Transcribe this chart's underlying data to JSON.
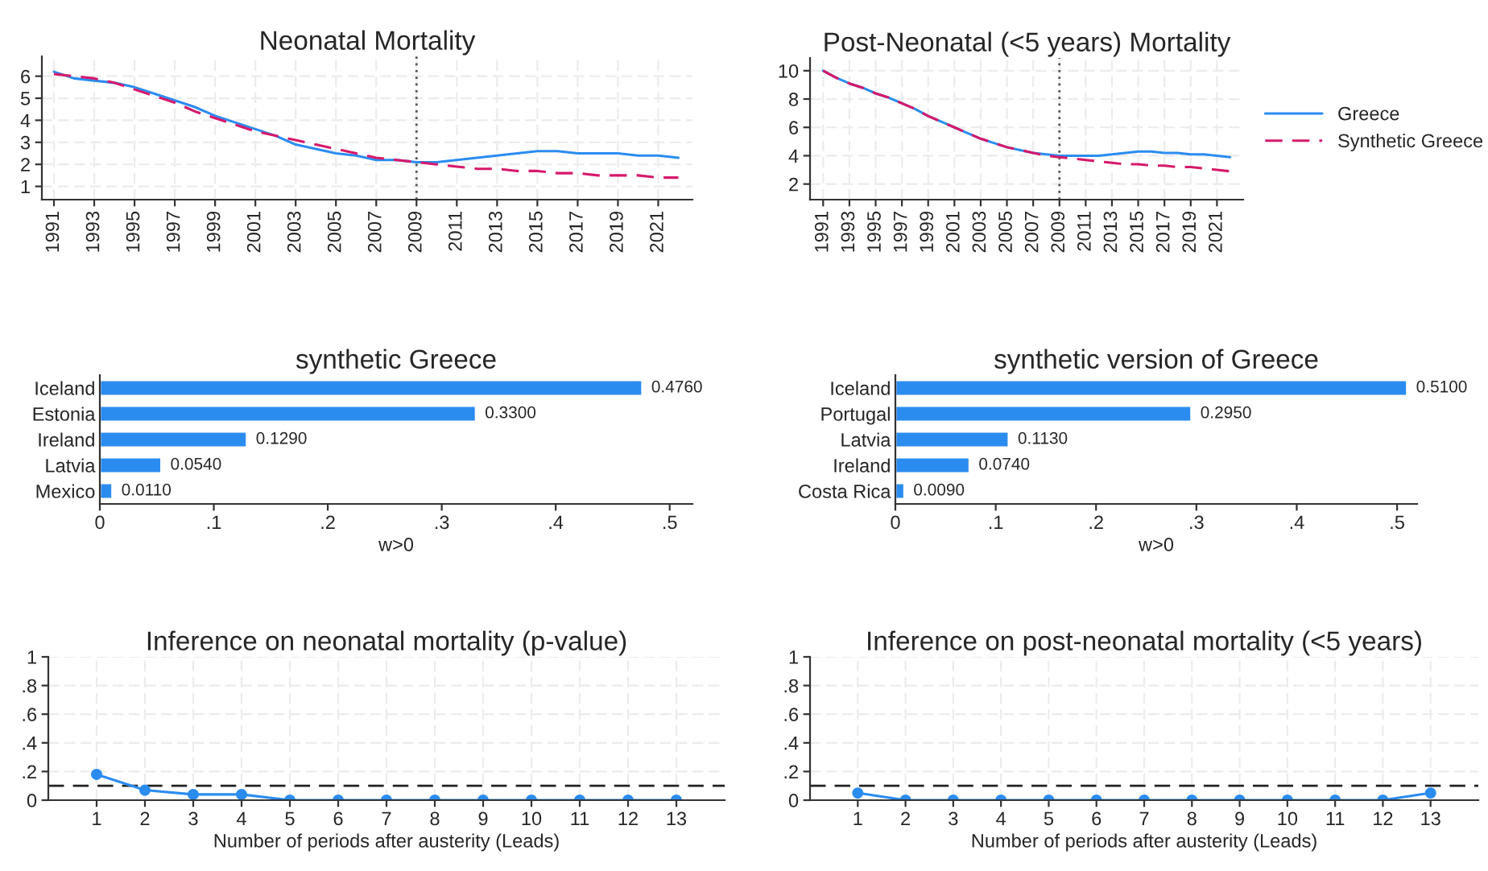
{
  "chart_data": [
    {
      "type": "line",
      "title": "Neonatal Mortality",
      "x": [
        1991,
        1992,
        1993,
        1994,
        1995,
        1996,
        1997,
        1998,
        1999,
        2000,
        2001,
        2002,
        2003,
        2004,
        2005,
        2006,
        2007,
        2008,
        2009,
        2010,
        2011,
        2012,
        2013,
        2014,
        2015,
        2016,
        2017,
        2018,
        2019,
        2020,
        2021,
        2022
      ],
      "series": [
        {
          "color": "#2b8cf0",
          "line_style": "solid",
          "values": [
            6.2,
            5.9,
            5.8,
            5.7,
            5.5,
            5.2,
            4.9,
            4.6,
            4.2,
            3.9,
            3.6,
            3.3,
            2.9,
            2.7,
            2.5,
            2.4,
            2.2,
            2.2,
            2.1,
            2.1,
            2.2,
            2.3,
            2.4,
            2.5,
            2.6,
            2.6,
            2.5,
            2.5,
            2.5,
            2.4,
            2.4,
            2.3
          ]
        },
        {
          "color": "#d6196b",
          "line_style": "dashed",
          "values": [
            6.1,
            6.0,
            5.9,
            5.7,
            5.4,
            5.1,
            4.8,
            4.4,
            4.1,
            3.8,
            3.5,
            3.3,
            3.1,
            2.9,
            2.7,
            2.5,
            2.3,
            2.2,
            2.1,
            2.0,
            1.9,
            1.8,
            1.8,
            1.7,
            1.7,
            1.6,
            1.6,
            1.5,
            1.5,
            1.5,
            1.4,
            1.4
          ]
        }
      ],
      "xlim": [
        1990.4,
        2022.7
      ],
      "xticks": [
        1991,
        1993,
        1995,
        1997,
        1999,
        2001,
        2003,
        2005,
        2007,
        2009,
        2011,
        2013,
        2015,
        2017,
        2019,
        2021
      ],
      "ylim": [
        0.4,
        6.9
      ],
      "yticks": [
        1,
        2,
        3,
        4,
        5,
        6
      ],
      "grid": true,
      "ref_lines": [
        {
          "axis": "x",
          "value": 2009,
          "color": "#555555",
          "line_style": "dotted"
        }
      ]
    },
    {
      "type": "line",
      "title": "Post-Neonatal (<5 years) Mortality",
      "x": [
        1991,
        1992,
        1993,
        1994,
        1995,
        1996,
        1997,
        1998,
        1999,
        2000,
        2001,
        2002,
        2003,
        2004,
        2005,
        2006,
        2007,
        2008,
        2009,
        2010,
        2011,
        2012,
        2013,
        2014,
        2015,
        2016,
        2017,
        2018,
        2019,
        2020,
        2021,
        2022
      ],
      "series": [
        {
          "name": "Greece",
          "color": "#2b8cf0",
          "line_style": "solid",
          "values": [
            10,
            9.5,
            9.1,
            8.8,
            8.4,
            8.1,
            7.7,
            7.3,
            6.8,
            6.4,
            6.0,
            5.6,
            5.2,
            4.9,
            4.6,
            4.4,
            4.2,
            4.1,
            4.0,
            4.0,
            4.0,
            4.0,
            4.1,
            4.2,
            4.3,
            4.3,
            4.2,
            4.2,
            4.1,
            4.1,
            4.0,
            3.9
          ]
        },
        {
          "name": "Synthetic Greece",
          "color": "#d6196b",
          "line_style": "dashed",
          "values": [
            10,
            9.5,
            9.1,
            8.8,
            8.4,
            8.1,
            7.7,
            7.3,
            6.8,
            6.4,
            6.0,
            5.6,
            5.2,
            4.9,
            4.6,
            4.4,
            4.2,
            4.0,
            3.9,
            3.8,
            3.7,
            3.6,
            3.5,
            3.4,
            3.4,
            3.3,
            3.3,
            3.2,
            3.2,
            3.1,
            3.0,
            2.9
          ]
        }
      ],
      "xlim": [
        1990,
        2023
      ],
      "xticks": [
        1991,
        1993,
        1995,
        1997,
        1999,
        2001,
        2003,
        2005,
        2007,
        2009,
        2011,
        2013,
        2015,
        2017,
        2019,
        2021
      ],
      "ylim": [
        0.9,
        10.9
      ],
      "yticks": [
        2,
        4,
        6,
        8,
        10
      ],
      "grid": true,
      "legend": "right",
      "ref_lines": [
        {
          "axis": "x",
          "value": 2009,
          "color": "#555555",
          "line_style": "dotted"
        }
      ]
    },
    {
      "type": "bar",
      "orientation": "horizontal",
      "title": "synthetic Greece",
      "xlabel": "w>0",
      "categories": [
        "Iceland",
        "Estonia",
        "Ireland",
        "Latvia",
        "Mexico"
      ],
      "values": [
        0.476,
        0.33,
        0.129,
        0.054,
        0.011
      ],
      "value_labels": [
        "0.4760",
        "0.3300",
        "0.1290",
        "0.0540",
        "0.0110"
      ],
      "color": "#2b8cf0",
      "xlim": [
        0,
        0.52
      ],
      "xticks": [
        0,
        {
          "value": 0.1,
          "label": ".1"
        },
        {
          "value": 0.2,
          "label": ".2"
        },
        {
          "value": 0.3,
          "label": ".3"
        },
        {
          "value": 0.4,
          "label": ".4"
        },
        {
          "value": 0.5,
          "label": ".5"
        }
      ]
    },
    {
      "type": "bar",
      "orientation": "horizontal",
      "title": "synthetic version of Greece",
      "xlabel": "w>0",
      "categories": [
        "Iceland",
        "Portugal",
        "Latvia",
        "Ireland",
        "Costa Rica"
      ],
      "values": [
        0.51,
        0.295,
        0.113,
        0.074,
        0.009
      ],
      "value_labels": [
        "0.5100",
        "0.2950",
        "0.1130",
        "0.0740",
        "0.0090"
      ],
      "color": "#2b8cf0",
      "xlim": [
        0,
        0.52
      ],
      "xticks": [
        0,
        {
          "value": 0.1,
          "label": ".1"
        },
        {
          "value": 0.2,
          "label": ".2"
        },
        {
          "value": 0.3,
          "label": ".3"
        },
        {
          "value": 0.4,
          "label": ".4"
        },
        {
          "value": 0.5,
          "label": ".5"
        }
      ]
    },
    {
      "type": "line",
      "title": "Inference on neonatal mortality (p-value)",
      "xlabel": "Number of periods after austerity (Leads)",
      "marker": "circle",
      "x": [
        1,
        2,
        3,
        4,
        5,
        6,
        7,
        8,
        9,
        10,
        11,
        12,
        13
      ],
      "series": [
        {
          "color": "#2b8cf0",
          "line_style": "solid",
          "values": [
            0.18,
            0.07,
            0.04,
            0.04,
            0,
            0,
            0,
            0,
            0,
            0,
            0,
            0,
            0
          ]
        }
      ],
      "xlim": [
        0,
        14
      ],
      "xticks": [
        1,
        2,
        3,
        4,
        5,
        6,
        7,
        8,
        9,
        10,
        11,
        12,
        13
      ],
      "ylim": [
        0,
        1
      ],
      "yticks": [
        0,
        {
          "value": 0.2,
          "label": ".2"
        },
        {
          "value": 0.4,
          "label": ".4"
        },
        {
          "value": 0.6,
          "label": ".6"
        },
        {
          "value": 0.8,
          "label": ".8"
        },
        1
      ],
      "grid": true,
      "ref_lines": [
        {
          "axis": "y",
          "value": 0.1,
          "color": "#222222",
          "line_style": "dashed"
        }
      ]
    },
    {
      "type": "line",
      "title": "Inference on post-neonatal mortality (<5 years)",
      "xlabel": "Number of periods after austerity (Leads)",
      "marker": "circle",
      "x": [
        1,
        2,
        3,
        4,
        5,
        6,
        7,
        8,
        9,
        10,
        11,
        12,
        13
      ],
      "series": [
        {
          "color": "#2b8cf0",
          "line_style": "solid",
          "values": [
            0.05,
            0,
            0,
            0,
            0,
            0,
            0,
            0,
            0,
            0,
            0,
            0,
            0.05
          ]
        }
      ],
      "xlim": [
        0,
        14
      ],
      "xticks": [
        1,
        2,
        3,
        4,
        5,
        6,
        7,
        8,
        9,
        10,
        11,
        12,
        13
      ],
      "ylim": [
        0,
        1
      ],
      "yticks": [
        0,
        {
          "value": 0.2,
          "label": ".2"
        },
        {
          "value": 0.4,
          "label": ".4"
        },
        {
          "value": 0.6,
          "label": ".6"
        },
        {
          "value": 0.8,
          "label": ".8"
        },
        1
      ],
      "grid": true,
      "ref_lines": [
        {
          "axis": "y",
          "value": 0.1,
          "color": "#222222",
          "line_style": "dashed"
        }
      ]
    }
  ]
}
